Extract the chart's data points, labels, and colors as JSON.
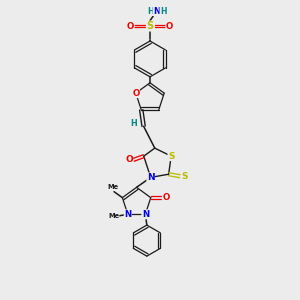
{
  "bg_color": "#ececec",
  "bond_color": "#1a1a1a",
  "atom_colors": {
    "N": "#0000ee",
    "O": "#ee0000",
    "S": "#bbbb00",
    "H": "#008888",
    "C": "#1a1a1a"
  },
  "scale": 1.0
}
